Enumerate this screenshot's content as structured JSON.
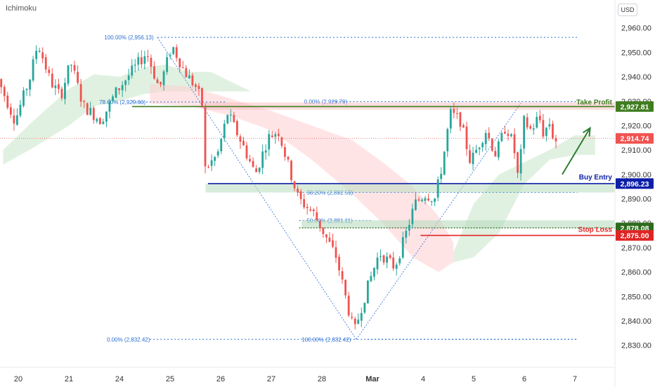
{
  "indicator": "Ichimoku",
  "currency": "USD",
  "colors": {
    "up": "#26a69a",
    "down": "#ef5350",
    "take_profit": "#3f7d20",
    "buy_entry": "#0d1fa8",
    "stop_loss": "#e02424",
    "current": "#ef5350",
    "fib": "#2a6fd6",
    "cloud_bull": "#c8e6c9",
    "cloud_bear": "#ffcdd2",
    "arrow": "#2e7d32"
  },
  "chart_data": {
    "type": "candlestick",
    "ylim": [
      2825,
      2968
    ],
    "y_ticks": [
      2830,
      2840,
      2850,
      2860,
      2870,
      2880,
      2890,
      2900,
      2910,
      2920,
      2930,
      2940,
      2950,
      2960
    ],
    "y_tick_labels": [
      "2,830.00",
      "2,840.00",
      "2,850.00",
      "2,860.00",
      "2,870.00",
      "2,880.00",
      "2,890.00",
      "2,900.00",
      "2,910.00",
      "2,920.00",
      "2,930.00",
      "2,940.00",
      "2,950.00",
      "2,960.00"
    ],
    "x_range": [
      -0.4,
      11.2
    ],
    "x_ticks": [
      {
        "pos": 0,
        "label": "20"
      },
      {
        "pos": 1,
        "label": "21"
      },
      {
        "pos": 2,
        "label": "24"
      },
      {
        "pos": 3,
        "label": "25"
      },
      {
        "pos": 4,
        "label": "26"
      },
      {
        "pos": 5,
        "label": "27"
      },
      {
        "pos": 6,
        "label": "28"
      },
      {
        "pos": 7,
        "label": "Mar",
        "bold": true
      },
      {
        "pos": 8,
        "label": "4"
      },
      {
        "pos": 9,
        "label": "5"
      },
      {
        "pos": 10,
        "label": "6"
      },
      {
        "pos": 11,
        "label": "7"
      }
    ],
    "levels": {
      "take_profit": {
        "value": 2927.81,
        "label": "Take Profit",
        "price_label": "2,927.81"
      },
      "current": {
        "value": 2914.74,
        "price_label": "2,914.74"
      },
      "buy_entry": {
        "value": 2896.23,
        "label": "Buy Entry",
        "price_label": "2,896.23"
      },
      "support": {
        "value": 2878.08,
        "price_label": "2,878.08"
      },
      "stop_loss": {
        "value": 2875.0,
        "label": "Stop Loss",
        "price_label": "2,875.00"
      }
    },
    "fib_levels": [
      {
        "value": 2956.13,
        "label": "100.00% (2,956.13)",
        "x0": 2.75,
        "x1": 11.05,
        "label_x": 1.7
      },
      {
        "value": 2929.79,
        "label": "0.00% (2,929.79)",
        "x0": 6.2,
        "x1": 11.05,
        "label_x": 5.65
      },
      {
        "value": 2929.66,
        "label": "78.60% (2,929.66)",
        "x0": 2.25,
        "x1": 4.1,
        "label_x": 1.6
      },
      {
        "value": 2892.59,
        "label": "38.20% (2,892.59)",
        "x0": 5.55,
        "x1": 11.05,
        "label_x": 5.7
      },
      {
        "value": 2881.11,
        "label": "50.00% (2,881.11)",
        "x0": 5.55,
        "x1": 7.0,
        "label_x": 5.7
      },
      {
        "value": 2832.42,
        "label": "0.00% (2,832.42)",
        "x0": 2.6,
        "x1": 11.05,
        "label_x": 1.75
      },
      {
        "value": 2832.42,
        "label": "100.00% (2,832.42)",
        "x0": 6.9,
        "x1": 11.05,
        "label_x": 5.6
      }
    ],
    "fib_lines": [
      {
        "x0": 2.75,
        "y0": 2956.13,
        "x1": 6.68,
        "y1": 2832.42
      },
      {
        "x0": 6.68,
        "y0": 2832.42,
        "x1": 9.95,
        "y1": 2929.79
      }
    ],
    "anchors": [
      {
        "x": -0.4,
        "y": 2942
      },
      {
        "x": 0.0,
        "y": 2922
      },
      {
        "x": 0.3,
        "y": 2940
      },
      {
        "x": 0.45,
        "y": 2954
      },
      {
        "x": 0.7,
        "y": 2938
      },
      {
        "x": 0.9,
        "y": 2932
      },
      {
        "x": 1.1,
        "y": 2946
      },
      {
        "x": 1.35,
        "y": 2928
      },
      {
        "x": 1.7,
        "y": 2922
      },
      {
        "x": 2.0,
        "y": 2934
      },
      {
        "x": 2.3,
        "y": 2942
      },
      {
        "x": 2.6,
        "y": 2950
      },
      {
        "x": 2.85,
        "y": 2935
      },
      {
        "x": 3.1,
        "y": 2953
      },
      {
        "x": 3.35,
        "y": 2942
      },
      {
        "x": 3.6,
        "y": 2935
      },
      {
        "x": 3.7,
        "y": 2928
      },
      {
        "x": 3.75,
        "y": 2902
      },
      {
        "x": 4.0,
        "y": 2908
      },
      {
        "x": 4.2,
        "y": 2925
      },
      {
        "x": 4.5,
        "y": 2912
      },
      {
        "x": 4.75,
        "y": 2900
      },
      {
        "x": 5.0,
        "y": 2915
      },
      {
        "x": 5.2,
        "y": 2918
      },
      {
        "x": 5.45,
        "y": 2900
      },
      {
        "x": 5.6,
        "y": 2890
      },
      {
        "x": 5.9,
        "y": 2884
      },
      {
        "x": 6.1,
        "y": 2876
      },
      {
        "x": 6.35,
        "y": 2866
      },
      {
        "x": 6.55,
        "y": 2848
      },
      {
        "x": 6.7,
        "y": 2835
      },
      {
        "x": 6.85,
        "y": 2846
      },
      {
        "x": 7.0,
        "y": 2856
      },
      {
        "x": 7.2,
        "y": 2868
      },
      {
        "x": 7.5,
        "y": 2862
      },
      {
        "x": 7.7,
        "y": 2874
      },
      {
        "x": 7.9,
        "y": 2888
      },
      {
        "x": 8.1,
        "y": 2892
      },
      {
        "x": 8.3,
        "y": 2890
      },
      {
        "x": 8.45,
        "y": 2905
      },
      {
        "x": 8.6,
        "y": 2925
      },
      {
        "x": 8.8,
        "y": 2922
      },
      {
        "x": 9.0,
        "y": 2905
      },
      {
        "x": 9.3,
        "y": 2918
      },
      {
        "x": 9.5,
        "y": 2908
      },
      {
        "x": 9.7,
        "y": 2920
      },
      {
        "x": 9.85,
        "y": 2912
      },
      {
        "x": 9.95,
        "y": 2897
      },
      {
        "x": 10.05,
        "y": 2922
      },
      {
        "x": 10.2,
        "y": 2918
      },
      {
        "x": 10.35,
        "y": 2924
      },
      {
        "x": 10.45,
        "y": 2916
      },
      {
        "x": 10.55,
        "y": 2922
      },
      {
        "x": 10.65,
        "y": 2914
      }
    ],
    "cloud_bull_upper": [
      {
        "x": -0.3,
        "y": 2910
      },
      {
        "x": 0.3,
        "y": 2922
      },
      {
        "x": 1.0,
        "y": 2935
      },
      {
        "x": 1.5,
        "y": 2941
      },
      {
        "x": 2.0,
        "y": 2940
      },
      {
        "x": 2.5,
        "y": 2944
      },
      {
        "x": 2.9,
        "y": 2945
      },
      {
        "x": 3.4,
        "y": 2942
      },
      {
        "x": 3.8,
        "y": 2942
      },
      {
        "x": 4.2,
        "y": 2938
      },
      {
        "x": 4.6,
        "y": 2934
      }
    ],
    "cloud_bull_lower": [
      {
        "x": -0.3,
        "y": 2904
      },
      {
        "x": 0.3,
        "y": 2911
      },
      {
        "x": 1.0,
        "y": 2920
      },
      {
        "x": 1.5,
        "y": 2928
      },
      {
        "x": 2.0,
        "y": 2930
      },
      {
        "x": 2.5,
        "y": 2933
      },
      {
        "x": 2.9,
        "y": 2934
      },
      {
        "x": 3.4,
        "y": 2934
      },
      {
        "x": 3.8,
        "y": 2934
      },
      {
        "x": 4.2,
        "y": 2934
      },
      {
        "x": 4.6,
        "y": 2934
      }
    ],
    "cloud_bear_upper": [
      {
        "x": 2.6,
        "y": 2937
      },
      {
        "x": 3.4,
        "y": 2936
      },
      {
        "x": 4.2,
        "y": 2931
      },
      {
        "x": 5.0,
        "y": 2926
      },
      {
        "x": 5.8,
        "y": 2920
      },
      {
        "x": 6.6,
        "y": 2914
      },
      {
        "x": 7.2,
        "y": 2905
      },
      {
        "x": 7.8,
        "y": 2895
      },
      {
        "x": 8.3,
        "y": 2883
      },
      {
        "x": 8.6,
        "y": 2872
      }
    ],
    "cloud_bear_lower": [
      {
        "x": 2.6,
        "y": 2929
      },
      {
        "x": 3.4,
        "y": 2928
      },
      {
        "x": 4.2,
        "y": 2924
      },
      {
        "x": 5.0,
        "y": 2918
      },
      {
        "x": 5.8,
        "y": 2906
      },
      {
        "x": 6.6,
        "y": 2892
      },
      {
        "x": 7.2,
        "y": 2880
      },
      {
        "x": 7.8,
        "y": 2866
      },
      {
        "x": 8.3,
        "y": 2860
      },
      {
        "x": 8.6,
        "y": 2864
      }
    ],
    "cloud_bull2_upper": [
      {
        "x": 8.6,
        "y": 2868
      },
      {
        "x": 9.0,
        "y": 2888
      },
      {
        "x": 9.5,
        "y": 2900
      },
      {
        "x": 10.0,
        "y": 2905
      },
      {
        "x": 10.5,
        "y": 2910
      },
      {
        "x": 11.0,
        "y": 2916
      },
      {
        "x": 11.4,
        "y": 2916
      }
    ],
    "cloud_bull2_lower": [
      {
        "x": 8.6,
        "y": 2864
      },
      {
        "x": 9.0,
        "y": 2866
      },
      {
        "x": 9.5,
        "y": 2876
      },
      {
        "x": 10.0,
        "y": 2896
      },
      {
        "x": 10.5,
        "y": 2906
      },
      {
        "x": 11.0,
        "y": 2908
      },
      {
        "x": 11.4,
        "y": 2908
      }
    ],
    "arrow": {
      "x0": 10.75,
      "y0": 2900,
      "x1": 11.3,
      "y1": 2919
    }
  }
}
